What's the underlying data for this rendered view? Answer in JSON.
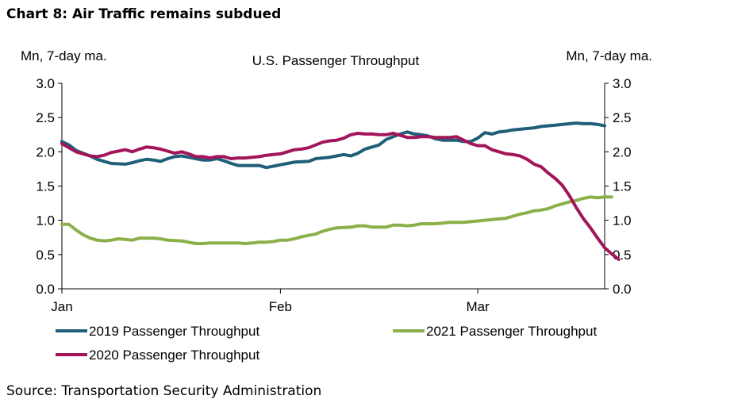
{
  "header": {
    "title": "Chart 8: Air Traffic remains subdued"
  },
  "footer": {
    "source": "Source: Transportation Security Administration"
  },
  "chart_data": {
    "type": "line",
    "title": "U.S. Passenger Throughput",
    "ylabel_left": "Mn, 7-day ma.",
    "ylabel_right": "Mn, 7-day ma.",
    "ylim": [
      0,
      3.0
    ],
    "yticks": [
      "0.0",
      "0.5",
      "1.0",
      "1.5",
      "2.0",
      "2.5",
      "3.0"
    ],
    "xlim": [
      1,
      78
    ],
    "x_ticks": [
      {
        "label": "Jan",
        "x": 1
      },
      {
        "label": "Feb",
        "x": 32
      },
      {
        "label": "Mar",
        "x": 60
      }
    ],
    "grid": false,
    "legend": "bottom",
    "series": [
      {
        "name": "2019 Passenger Throughput",
        "color": "#1f5f7a",
        "points": [
          [
            1,
            2.15
          ],
          [
            2,
            2.1
          ],
          [
            3,
            2.02
          ],
          [
            4,
            1.98
          ],
          [
            5,
            1.94
          ],
          [
            6,
            1.89
          ],
          [
            7,
            1.86
          ],
          [
            8,
            1.83
          ],
          [
            10,
            1.82
          ],
          [
            11,
            1.84
          ],
          [
            12,
            1.87
          ],
          [
            13,
            1.89
          ],
          [
            14,
            1.88
          ],
          [
            15,
            1.86
          ],
          [
            16,
            1.9
          ],
          [
            17,
            1.93
          ],
          [
            18,
            1.94
          ],
          [
            19,
            1.92
          ],
          [
            20,
            1.9
          ],
          [
            21,
            1.88
          ],
          [
            22,
            1.88
          ],
          [
            23,
            1.9
          ],
          [
            24,
            1.87
          ],
          [
            25,
            1.83
          ],
          [
            26,
            1.8
          ],
          [
            28,
            1.8
          ],
          [
            29,
            1.8
          ],
          [
            30,
            1.77
          ],
          [
            31,
            1.79
          ],
          [
            32,
            1.81
          ],
          [
            33,
            1.83
          ],
          [
            34,
            1.85
          ],
          [
            36,
            1.86
          ],
          [
            37,
            1.9
          ],
          [
            38,
            1.91
          ],
          [
            39,
            1.92
          ],
          [
            40,
            1.94
          ],
          [
            41,
            1.96
          ],
          [
            42,
            1.94
          ],
          [
            43,
            1.98
          ],
          [
            44,
            2.04
          ],
          [
            45,
            2.07
          ],
          [
            46,
            2.1
          ],
          [
            47,
            2.18
          ],
          [
            48,
            2.22
          ],
          [
            49,
            2.26
          ],
          [
            50,
            2.29
          ],
          [
            51,
            2.26
          ],
          [
            52,
            2.25
          ],
          [
            53,
            2.23
          ],
          [
            54,
            2.19
          ],
          [
            55,
            2.17
          ],
          [
            57,
            2.17
          ],
          [
            58,
            2.15
          ],
          [
            59,
            2.15
          ],
          [
            60,
            2.2
          ],
          [
            61,
            2.28
          ],
          [
            62,
            2.26
          ],
          [
            63,
            2.29
          ],
          [
            64,
            2.3
          ],
          [
            65,
            2.32
          ],
          [
            67,
            2.34
          ],
          [
            68,
            2.35
          ],
          [
            69,
            2.37
          ],
          [
            71,
            2.39
          ],
          [
            73,
            2.41
          ],
          [
            74,
            2.42
          ],
          [
            75,
            2.41
          ],
          [
            76,
            2.41
          ],
          [
            77,
            2.4
          ],
          [
            78,
            2.38
          ]
        ]
      },
      {
        "name": "2021 Passenger Throughput",
        "color": "#8bb04a",
        "points": [
          [
            1,
            0.94
          ],
          [
            2,
            0.94
          ],
          [
            3,
            0.86
          ],
          [
            4,
            0.79
          ],
          [
            5,
            0.74
          ],
          [
            6,
            0.71
          ],
          [
            7,
            0.7
          ],
          [
            8,
            0.71
          ],
          [
            9,
            0.73
          ],
          [
            10,
            0.72
          ],
          [
            11,
            0.71
          ],
          [
            12,
            0.74
          ],
          [
            14,
            0.74
          ],
          [
            15,
            0.73
          ],
          [
            16,
            0.71
          ],
          [
            18,
            0.7
          ],
          [
            19,
            0.68
          ],
          [
            20,
            0.66
          ],
          [
            21,
            0.66
          ],
          [
            22,
            0.67
          ],
          [
            24,
            0.67
          ],
          [
            26,
            0.67
          ],
          [
            27,
            0.66
          ],
          [
            28,
            0.67
          ],
          [
            29,
            0.68
          ],
          [
            30,
            0.68
          ],
          [
            31,
            0.69
          ],
          [
            32,
            0.71
          ],
          [
            33,
            0.71
          ],
          [
            34,
            0.73
          ],
          [
            35,
            0.76
          ],
          [
            36,
            0.78
          ],
          [
            37,
            0.8
          ],
          [
            38,
            0.84
          ],
          [
            39,
            0.87
          ],
          [
            40,
            0.89
          ],
          [
            42,
            0.9
          ],
          [
            43,
            0.92
          ],
          [
            44,
            0.92
          ],
          [
            45,
            0.9
          ],
          [
            47,
            0.9
          ],
          [
            48,
            0.93
          ],
          [
            49,
            0.93
          ],
          [
            50,
            0.92
          ],
          [
            51,
            0.93
          ],
          [
            52,
            0.95
          ],
          [
            54,
            0.95
          ],
          [
            55,
            0.96
          ],
          [
            56,
            0.97
          ],
          [
            58,
            0.97
          ],
          [
            59,
            0.98
          ],
          [
            60,
            0.99
          ],
          [
            62,
            1.01
          ],
          [
            63,
            1.02
          ],
          [
            64,
            1.03
          ],
          [
            65,
            1.06
          ],
          [
            66,
            1.09
          ],
          [
            67,
            1.11
          ],
          [
            68,
            1.14
          ],
          [
            69,
            1.15
          ],
          [
            70,
            1.17
          ],
          [
            71,
            1.21
          ],
          [
            72,
            1.24
          ],
          [
            73,
            1.27
          ],
          [
            74,
            1.29
          ],
          [
            75,
            1.32
          ],
          [
            76,
            1.34
          ],
          [
            77,
            1.33
          ],
          [
            78,
            1.34
          ],
          [
            79,
            1.34
          ]
        ]
      },
      {
        "name": "2020 Passenger Throughput",
        "color": "#a3155a",
        "points": [
          [
            1,
            2.12
          ],
          [
            2,
            2.06
          ],
          [
            3,
            2.0
          ],
          [
            4,
            1.97
          ],
          [
            5,
            1.94
          ],
          [
            6,
            1.93
          ],
          [
            7,
            1.95
          ],
          [
            8,
            1.99
          ],
          [
            9,
            2.01
          ],
          [
            10,
            2.03
          ],
          [
            11,
            2.0
          ],
          [
            12,
            2.04
          ],
          [
            13,
            2.07
          ],
          [
            14,
            2.06
          ],
          [
            15,
            2.04
          ],
          [
            16,
            2.01
          ],
          [
            17,
            1.98
          ],
          [
            18,
            2.0
          ],
          [
            19,
            1.97
          ],
          [
            20,
            1.93
          ],
          [
            21,
            1.93
          ],
          [
            22,
            1.91
          ],
          [
            23,
            1.93
          ],
          [
            24,
            1.93
          ],
          [
            25,
            1.9
          ],
          [
            26,
            1.91
          ],
          [
            27,
            1.91
          ],
          [
            28,
            1.92
          ],
          [
            29,
            1.93
          ],
          [
            30,
            1.95
          ],
          [
            31,
            1.96
          ],
          [
            32,
            1.97
          ],
          [
            33,
            2.0
          ],
          [
            34,
            2.03
          ],
          [
            35,
            2.04
          ],
          [
            36,
            2.06
          ],
          [
            37,
            2.1
          ],
          [
            38,
            2.14
          ],
          [
            39,
            2.16
          ],
          [
            40,
            2.17
          ],
          [
            41,
            2.2
          ],
          [
            42,
            2.25
          ],
          [
            43,
            2.27
          ],
          [
            44,
            2.26
          ],
          [
            45,
            2.26
          ],
          [
            46,
            2.25
          ],
          [
            47,
            2.25
          ],
          [
            48,
            2.27
          ],
          [
            49,
            2.24
          ],
          [
            50,
            2.21
          ],
          [
            51,
            2.21
          ],
          [
            52,
            2.22
          ],
          [
            53,
            2.22
          ],
          [
            54,
            2.21
          ],
          [
            55,
            2.21
          ],
          [
            56,
            2.21
          ],
          [
            57,
            2.22
          ],
          [
            58,
            2.17
          ],
          [
            59,
            2.12
          ],
          [
            60,
            2.09
          ],
          [
            61,
            2.09
          ],
          [
            62,
            2.03
          ],
          [
            63,
            2.0
          ],
          [
            64,
            1.97
          ],
          [
            65,
            1.96
          ],
          [
            66,
            1.94
          ],
          [
            67,
            1.89
          ],
          [
            68,
            1.82
          ],
          [
            69,
            1.78
          ],
          [
            70,
            1.69
          ],
          [
            71,
            1.61
          ],
          [
            72,
            1.51
          ],
          [
            73,
            1.36
          ],
          [
            74,
            1.18
          ],
          [
            75,
            1.02
          ],
          [
            76,
            0.89
          ],
          [
            77,
            0.74
          ],
          [
            78,
            0.6
          ],
          [
            79,
            0.51
          ],
          [
            80,
            0.43
          ]
        ]
      }
    ]
  }
}
